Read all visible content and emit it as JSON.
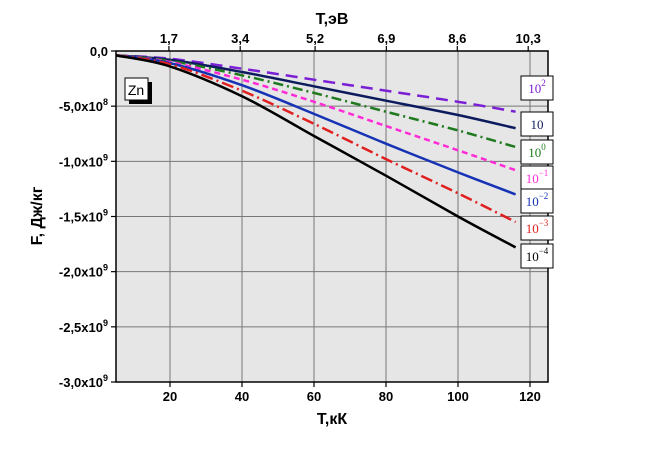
{
  "chart_data": {
    "type": "line",
    "xlabel": "T,кК",
    "xlabel_top": "T,эВ",
    "ylabel": "F, Дж/кг",
    "xlim": [
      5,
      125
    ],
    "ylim": [
      -3000000000.0,
      0
    ],
    "x_ticks": [
      20,
      40,
      60,
      80,
      100,
      120
    ],
    "x_top_ticks": [
      {
        "label": "1,7",
        "x": 19.7
      },
      {
        "label": "3,4",
        "x": 39.5
      },
      {
        "label": "5,2",
        "x": 60.3
      },
      {
        "label": "6,9",
        "x": 80.1
      },
      {
        "label": "8,6",
        "x": 99.8
      },
      {
        "label": "10,3",
        "x": 119.5
      }
    ],
    "y_ticks": [
      {
        "value": 0,
        "label": "0,0",
        "exp": ""
      },
      {
        "value": -500000000.0,
        "label": "-5,0x10",
        "exp": "8"
      },
      {
        "value": -1000000000.0,
        "label": "-1,0x10",
        "exp": "9"
      },
      {
        "value": -1500000000.0,
        "label": "-1,5x10",
        "exp": "9"
      },
      {
        "value": -2000000000.0,
        "label": "-2,0x10",
        "exp": "9"
      },
      {
        "value": -2500000000.0,
        "label": "-2,5x10",
        "exp": "9"
      },
      {
        "value": -3000000000.0,
        "label": "-3,0x10",
        "exp": "9"
      }
    ],
    "grid": true,
    "annotation": "Zn",
    "series": [
      {
        "name": "10^2",
        "label_base": "10",
        "label_sup": "2",
        "color": "#7b1fd6",
        "dash": "12,7",
        "x": [
          5,
          20,
          40,
          60,
          80,
          100,
          116
        ],
        "y": [
          -40000000.0,
          -70000000.0,
          -160000000.0,
          -260000000.0,
          -360000000.0,
          -460000000.0,
          -550000000.0
        ]
      },
      {
        "name": "10",
        "label_base": "10",
        "label_sup": "",
        "color": "#0d1b5e",
        "dash": "",
        "x": [
          5,
          20,
          40,
          60,
          80,
          100,
          116
        ],
        "y": [
          -40000000.0,
          -80000000.0,
          -190000000.0,
          -320000000.0,
          -450000000.0,
          -580000000.0,
          -700000000.0
        ]
      },
      {
        "name": "10^0",
        "label_base": "10",
        "label_sup": "0",
        "color": "#1f7a1f",
        "dash": "10,4,2,4",
        "x": [
          5,
          20,
          40,
          60,
          80,
          100,
          116
        ],
        "y": [
          -40000000.0,
          -90000000.0,
          -220000000.0,
          -380000000.0,
          -550000000.0,
          -720000000.0,
          -870000000.0
        ]
      },
      {
        "name": "10^-1",
        "label_base": "10",
        "label_sup": "−1",
        "color": "#ff2bd6",
        "dash": "6,4",
        "x": [
          5,
          20,
          40,
          60,
          80,
          100,
          116
        ],
        "y": [
          -40000000.0,
          -100000000.0,
          -260000000.0,
          -460000000.0,
          -680000000.0,
          -900000000.0,
          -1080000000.0
        ]
      },
      {
        "name": "10^-2",
        "label_base": "10",
        "label_sup": "−2",
        "color": "#1733b5",
        "dash": "",
        "x": [
          5,
          20,
          40,
          60,
          80,
          100,
          116
        ],
        "y": [
          -40000000.0,
          -110000000.0,
          -310000000.0,
          -570000000.0,
          -840000000.0,
          -1100000000.0,
          -1300000000.0
        ]
      },
      {
        "name": "10^-3",
        "label_base": "10",
        "label_sup": "−3",
        "color": "#e02020",
        "dash": "12,4,2,4",
        "x": [
          5,
          20,
          40,
          60,
          80,
          100,
          116
        ],
        "y": [
          -40000000.0,
          -120000000.0,
          -360000000.0,
          -660000000.0,
          -980000000.0,
          -1290000000.0,
          -1550000000.0
        ]
      },
      {
        "name": "10^-4",
        "label_base": "10",
        "label_sup": "−4",
        "color": "#000000",
        "dash": "",
        "x": [
          5,
          20,
          40,
          60,
          80,
          100,
          116
        ],
        "y": [
          -40000000.0,
          -140000000.0,
          -410000000.0,
          -770000000.0,
          -1130000000.0,
          -1500000000.0,
          -1780000000.0
        ]
      }
    ]
  }
}
